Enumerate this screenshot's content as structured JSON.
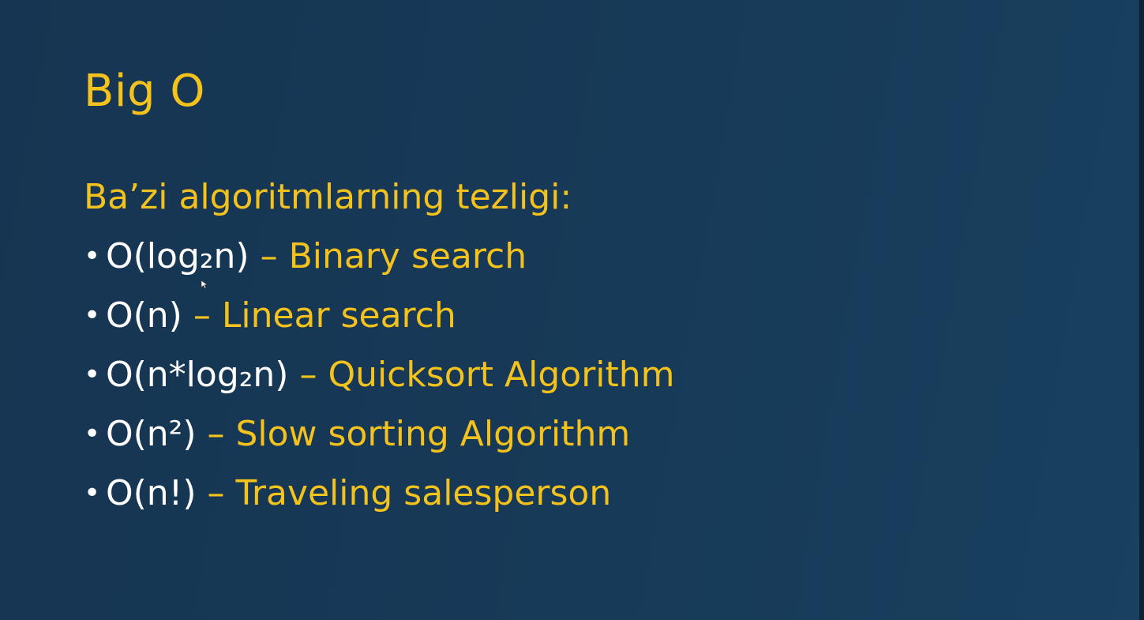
{
  "slide": {
    "title": "Big O",
    "subtitle": "Ba’zi algoritmlarning tezligi:",
    "items": [
      {
        "bullet": "•",
        "complexity": "O(log₂n)",
        "dash": " – ",
        "algorithm": "Binary search"
      },
      {
        "bullet": "•",
        "complexity": "O(n)",
        "dash": " – ",
        "algorithm": "Linear search"
      },
      {
        "bullet": "•",
        "complexity": "O(n*log₂n)",
        "dash": " – ",
        "algorithm": "Quicksort Algorithm"
      },
      {
        "bullet": "•",
        "complexity": "O(n²)",
        "dash": " – ",
        "algorithm": "Slow sorting Algorithm"
      },
      {
        "bullet": "•",
        "complexity": "O(n!)",
        "dash": " – ",
        "algorithm": "Traveling salesperson"
      }
    ]
  },
  "colors": {
    "background": "#173a58",
    "accent": "#f4c21c",
    "text_white": "#ffffff"
  },
  "icons": {
    "cursor": "mouse-cursor-icon"
  }
}
